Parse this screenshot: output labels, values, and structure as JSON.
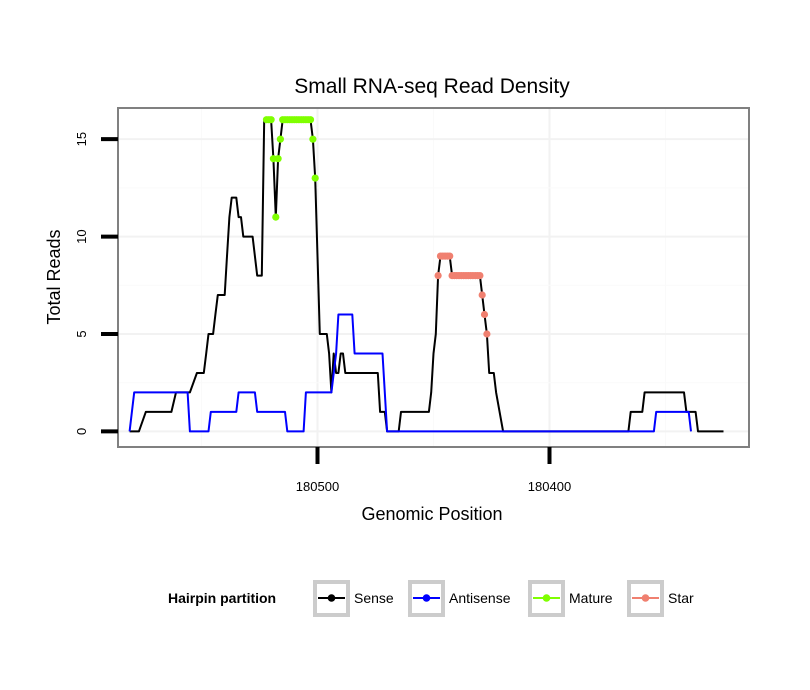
{
  "chart_data": {
    "type": "line",
    "title": "Small RNA-seq Read Density",
    "xlabel": "Genomic Position",
    "ylabel": "Total Reads",
    "x_reversed": true,
    "xlim": [
      180586,
      180314
    ],
    "ylim": [
      -0.8,
      16.6
    ],
    "x_ticks": [
      180500,
      180400
    ],
    "x_tick_labels": [
      "180500",
      "180400"
    ],
    "y_ticks": [
      0,
      5,
      10,
      15
    ],
    "y_tick_labels": [
      "0",
      "5",
      "10",
      "15"
    ],
    "grid": true,
    "legend": {
      "title": "Hairpin partition",
      "position": "bottom",
      "entries": [
        "Sense",
        "Antisense",
        "Mature",
        "Star"
      ]
    },
    "colors": {
      "Sense": "#000000",
      "Antisense": "#0000ff",
      "Mature": "#7fff00",
      "Star": "#f08070",
      "panel_border": "#808080",
      "grid_major": "#f2f2f2",
      "grid_minor": "#fafafa",
      "legend_key_border": "#cccccc"
    },
    "series": [
      {
        "name": "Sense",
        "kind": "line",
        "points": [
          [
            180581,
            0
          ],
          [
            180577,
            0
          ],
          [
            180574,
            1
          ],
          [
            180564,
            1
          ],
          [
            180563,
            1
          ],
          [
            180561,
            2
          ],
          [
            180555,
            2
          ],
          [
            180552,
            3
          ],
          [
            180549,
            3
          ],
          [
            180548,
            4
          ],
          [
            180547,
            5
          ],
          [
            180545,
            5
          ],
          [
            180544,
            6
          ],
          [
            180543,
            7
          ],
          [
            180540,
            7
          ],
          [
            180539,
            9
          ],
          [
            180538,
            11
          ],
          [
            180537,
            12
          ],
          [
            180535,
            12
          ],
          [
            180534,
            11
          ],
          [
            180533,
            11
          ],
          [
            180532,
            10
          ],
          [
            180528,
            10
          ],
          [
            180527,
            9
          ],
          [
            180526,
            8
          ],
          [
            180524,
            8
          ],
          [
            180523,
            16
          ],
          [
            180520,
            16
          ],
          [
            180519,
            14
          ],
          [
            180518,
            11
          ],
          [
            180517,
            14
          ],
          [
            180516,
            15
          ],
          [
            180515,
            16
          ],
          [
            180503,
            16
          ],
          [
            180502,
            15
          ],
          [
            180501,
            13
          ],
          [
            180499,
            5
          ],
          [
            180496,
            5
          ],
          [
            180495,
            4
          ],
          [
            180494,
            2
          ],
          [
            180493,
            4
          ],
          [
            180492,
            3
          ],
          [
            180491,
            3
          ],
          [
            180490,
            4
          ],
          [
            180489,
            4
          ],
          [
            180488,
            3
          ],
          [
            180474,
            3
          ],
          [
            180473,
            1
          ],
          [
            180471,
            1
          ],
          [
            180470,
            0
          ],
          [
            180465,
            0
          ],
          [
            180464,
            1
          ],
          [
            180452,
            1
          ],
          [
            180451,
            2
          ],
          [
            180450,
            4
          ],
          [
            180449,
            5
          ],
          [
            180448,
            8
          ],
          [
            180447,
            9
          ],
          [
            180443,
            9
          ],
          [
            180442,
            8
          ],
          [
            180430,
            8
          ],
          [
            180429,
            7
          ],
          [
            180428,
            6
          ],
          [
            180427,
            5
          ],
          [
            180426,
            3
          ],
          [
            180424,
            3
          ],
          [
            180423,
            2
          ],
          [
            180420,
            0
          ],
          [
            180366,
            0
          ],
          [
            180365,
            1
          ],
          [
            180360,
            1
          ],
          [
            180359,
            2
          ],
          [
            180342,
            2
          ],
          [
            180341,
            1
          ],
          [
            180337,
            1
          ],
          [
            180336,
            0
          ],
          [
            180325,
            0
          ]
        ]
      },
      {
        "name": "Antisense",
        "kind": "line",
        "points": [
          [
            180581,
            0
          ],
          [
            180579,
            2
          ],
          [
            180556,
            2
          ],
          [
            180555,
            0
          ],
          [
            180547,
            0
          ],
          [
            180546,
            1
          ],
          [
            180535,
            1
          ],
          [
            180534,
            2
          ],
          [
            180527,
            2
          ],
          [
            180526,
            1
          ],
          [
            180514,
            1
          ],
          [
            180513,
            0
          ],
          [
            180506,
            0
          ],
          [
            180505,
            2
          ],
          [
            180494,
            2
          ],
          [
            180492,
            4
          ],
          [
            180491,
            6
          ],
          [
            180485,
            6
          ],
          [
            180484,
            4
          ],
          [
            180472,
            4
          ],
          [
            180470,
            0
          ],
          [
            180355,
            0
          ],
          [
            180354,
            1
          ],
          [
            180340,
            1
          ],
          [
            180339,
            0
          ]
        ]
      },
      {
        "name": "Mature",
        "kind": "points",
        "points": [
          [
            180522,
            16
          ],
          [
            180521,
            16
          ],
          [
            180520,
            16
          ],
          [
            180519,
            14
          ],
          [
            180518,
            11
          ],
          [
            180517,
            14
          ],
          [
            180516,
            15
          ],
          [
            180515,
            16
          ],
          [
            180514,
            16
          ],
          [
            180513,
            16
          ],
          [
            180512,
            16
          ],
          [
            180511,
            16
          ],
          [
            180510,
            16
          ],
          [
            180509,
            16
          ],
          [
            180508,
            16
          ],
          [
            180507,
            16
          ],
          [
            180506,
            16
          ],
          [
            180505,
            16
          ],
          [
            180504,
            16
          ],
          [
            180503,
            16
          ],
          [
            180502,
            15
          ],
          [
            180501,
            13
          ]
        ]
      },
      {
        "name": "Star",
        "kind": "points",
        "points": [
          [
            180448,
            8
          ],
          [
            180447,
            9
          ],
          [
            180446,
            9
          ],
          [
            180445,
            9
          ],
          [
            180444,
            9
          ],
          [
            180443,
            9
          ],
          [
            180442,
            8
          ],
          [
            180441,
            8
          ],
          [
            180440,
            8
          ],
          [
            180439,
            8
          ],
          [
            180438,
            8
          ],
          [
            180437,
            8
          ],
          [
            180436,
            8
          ],
          [
            180435,
            8
          ],
          [
            180434,
            8
          ],
          [
            180433,
            8
          ],
          [
            180432,
            8
          ],
          [
            180431,
            8
          ],
          [
            180430,
            8
          ],
          [
            180429,
            7
          ],
          [
            180428,
            6
          ],
          [
            180427,
            5
          ]
        ]
      }
    ]
  }
}
